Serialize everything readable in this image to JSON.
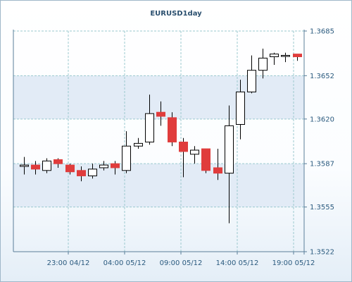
{
  "chart_data": {
    "type": "candlestick",
    "title": "EURUSD1day",
    "y_ticks": [
      "1.3685",
      "1.3652",
      "1.3620",
      "1.3587",
      "1.3555",
      "1.3522"
    ],
    "x_ticks": [
      "23:00 04/12",
      "04:00 05/12",
      "09:00 05/12",
      "14:00 05/12",
      "19:00 05/12"
    ],
    "ylim": [
      1.3522,
      1.3685
    ],
    "grid": true,
    "colors": {
      "up_fill": "#ffffff",
      "down_fill": "#e03c3c",
      "outline": "#000000",
      "grid": "#9cc9cf",
      "axis": "#5a7e99",
      "band": "#e2ebf6"
    },
    "candles": [
      {
        "open": 1.3585,
        "close": 1.3586,
        "high": 1.3592,
        "low": 1.3579
      },
      {
        "open": 1.3586,
        "close": 1.3583,
        "high": 1.3589,
        "low": 1.3579
      },
      {
        "open": 1.3582,
        "close": 1.3589,
        "high": 1.3591,
        "low": 1.358
      },
      {
        "open": 1.359,
        "close": 1.3587,
        "high": 1.3591,
        "low": 1.3584
      },
      {
        "open": 1.3586,
        "close": 1.3581,
        "high": 1.3587,
        "low": 1.3579
      },
      {
        "open": 1.3582,
        "close": 1.3578,
        "high": 1.3585,
        "low": 1.3574
      },
      {
        "open": 1.3578,
        "close": 1.3583,
        "high": 1.3587,
        "low": 1.3576
      },
      {
        "open": 1.3584,
        "close": 1.3586,
        "high": 1.3589,
        "low": 1.3582
      },
      {
        "open": 1.3587,
        "close": 1.3584,
        "high": 1.3589,
        "low": 1.3579
      },
      {
        "open": 1.3582,
        "close": 1.36,
        "high": 1.3611,
        "low": 1.358
      },
      {
        "open": 1.36,
        "close": 1.3602,
        "high": 1.3606,
        "low": 1.3598
      },
      {
        "open": 1.3603,
        "close": 1.3624,
        "high": 1.3638,
        "low": 1.3601
      },
      {
        "open": 1.3625,
        "close": 1.3622,
        "high": 1.3633,
        "low": 1.3615
      },
      {
        "open": 1.3621,
        "close": 1.3603,
        "high": 1.3625,
        "low": 1.36
      },
      {
        "open": 1.3603,
        "close": 1.3596,
        "high": 1.3606,
        "low": 1.3577
      },
      {
        "open": 1.3594,
        "close": 1.3597,
        "high": 1.36,
        "low": 1.3587
      },
      {
        "open": 1.3598,
        "close": 1.3582,
        "high": 1.3598,
        "low": 1.358
      },
      {
        "open": 1.3584,
        "close": 1.358,
        "high": 1.3598,
        "low": 1.3575
      },
      {
        "open": 1.358,
        "close": 1.3615,
        "high": 1.363,
        "low": 1.3543
      },
      {
        "open": 1.3616,
        "close": 1.364,
        "high": 1.3649,
        "low": 1.3605
      },
      {
        "open": 1.364,
        "close": 1.3656,
        "high": 1.3667,
        "low": 1.3639
      },
      {
        "open": 1.3656,
        "close": 1.3665,
        "high": 1.3672,
        "low": 1.365
      },
      {
        "open": 1.3666,
        "close": 1.3668,
        "high": 1.3669,
        "low": 1.366
      },
      {
        "open": 1.3667,
        "close": 1.3667,
        "high": 1.3669,
        "low": 1.3662
      },
      {
        "open": 1.3668,
        "close": 1.3666,
        "high": 1.3668,
        "low": 1.3663
      }
    ]
  }
}
